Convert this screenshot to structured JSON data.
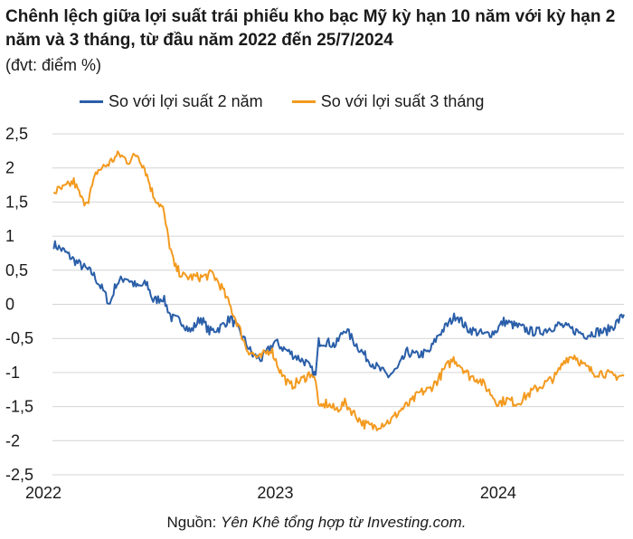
{
  "title": "Chênh lệch giữa lợi suất trái phiếu kho bạc Mỹ kỳ hạn 10 năm với kỳ hạn 2 năm và 3 tháng, từ đầu năm 2022 đến 25/7/2024",
  "subtitle": "(đvt: điểm %)",
  "source_label": "Nguồn: ",
  "source_text": "Yên Khê tổng hợp từ Investing.com.",
  "colors": {
    "series_2y": "#2a5ea8",
    "series_3m": "#f39a1f",
    "grid": "#d4d4d4"
  },
  "chart_data": {
    "type": "line",
    "x_range": [
      "2022-01-01",
      "2024-07-25"
    ],
    "x_ticks": [
      {
        "label": "2022",
        "date": "2022-01-01"
      },
      {
        "label": "2023",
        "date": "2023-01-01"
      },
      {
        "label": "2024",
        "date": "2024-01-01"
      }
    ],
    "ylim": [
      -2.5,
      2.5
    ],
    "y_ticks": [
      {
        "label": "2,5",
        "value": 2.5
      },
      {
        "label": "2",
        "value": 2
      },
      {
        "label": "1,5",
        "value": 1.5
      },
      {
        "label": "1",
        "value": 1
      },
      {
        "label": "0,5",
        "value": 0.5
      },
      {
        "label": "0",
        "value": 0
      },
      {
        "label": "-0,5",
        "value": -0.5
      },
      {
        "label": "-1",
        "value": -1
      },
      {
        "label": "-1,5",
        "value": -1.5
      },
      {
        "label": "-2",
        "value": -2
      },
      {
        "label": "-2,5",
        "value": -2.5
      }
    ],
    "grid": "horizontal",
    "legend_position": "top",
    "series": [
      {
        "name": "So với lợi suất 2 năm",
        "color": "#2a5ea8",
        "points": [
          [
            "2022-01-03",
            0.88
          ],
          [
            "2022-01-20",
            0.78
          ],
          [
            "2022-02-05",
            0.65
          ],
          [
            "2022-02-20",
            0.55
          ],
          [
            "2022-03-08",
            0.45
          ],
          [
            "2022-03-25",
            0.2
          ],
          [
            "2022-04-05",
            0.0
          ],
          [
            "2022-04-15",
            0.3
          ],
          [
            "2022-05-01",
            0.4
          ],
          [
            "2022-05-20",
            0.25
          ],
          [
            "2022-06-05",
            0.3
          ],
          [
            "2022-06-15",
            0.05
          ],
          [
            "2022-07-01",
            0.1
          ],
          [
            "2022-07-15",
            -0.2
          ],
          [
            "2022-08-01",
            -0.25
          ],
          [
            "2022-08-15",
            -0.4
          ],
          [
            "2022-09-01",
            -0.2
          ],
          [
            "2022-09-15",
            -0.4
          ],
          [
            "2022-10-01",
            -0.35
          ],
          [
            "2022-10-20",
            -0.2
          ],
          [
            "2022-11-10",
            -0.5
          ],
          [
            "2022-11-25",
            -0.75
          ],
          [
            "2022-12-10",
            -0.8
          ],
          [
            "2022-12-31",
            -0.55
          ],
          [
            "2023-01-15",
            -0.65
          ],
          [
            "2023-02-01",
            -0.75
          ],
          [
            "2023-02-20",
            -0.85
          ],
          [
            "2023-03-08",
            -1.05
          ],
          [
            "2023-03-13",
            -0.55
          ],
          [
            "2023-03-25",
            -0.55
          ],
          [
            "2023-04-10",
            -0.6
          ],
          [
            "2023-04-25",
            -0.35
          ],
          [
            "2023-05-10",
            -0.55
          ],
          [
            "2023-06-01",
            -0.8
          ],
          [
            "2023-06-20",
            -0.95
          ],
          [
            "2023-07-05",
            -1.05
          ],
          [
            "2023-07-20",
            -0.95
          ],
          [
            "2023-08-05",
            -0.7
          ],
          [
            "2023-08-20",
            -0.75
          ],
          [
            "2023-09-10",
            -0.7
          ],
          [
            "2023-09-25",
            -0.45
          ],
          [
            "2023-10-10",
            -0.3
          ],
          [
            "2023-10-25",
            -0.15
          ],
          [
            "2023-11-10",
            -0.35
          ],
          [
            "2023-11-25",
            -0.4
          ],
          [
            "2023-12-10",
            -0.45
          ],
          [
            "2023-12-27",
            -0.4
          ],
          [
            "2024-01-10",
            -0.25
          ],
          [
            "2024-01-25",
            -0.3
          ],
          [
            "2024-02-10",
            -0.35
          ],
          [
            "2024-02-25",
            -0.4
          ],
          [
            "2024-03-10",
            -0.4
          ],
          [
            "2024-03-25",
            -0.35
          ],
          [
            "2024-04-10",
            -0.3
          ],
          [
            "2024-04-25",
            -0.35
          ],
          [
            "2024-05-10",
            -0.4
          ],
          [
            "2024-05-25",
            -0.45
          ],
          [
            "2024-06-10",
            -0.4
          ],
          [
            "2024-06-25",
            -0.4
          ],
          [
            "2024-07-10",
            -0.3
          ],
          [
            "2024-07-25",
            -0.15
          ]
        ]
      },
      {
        "name": "So với lợi suất 3 tháng",
        "color": "#f39a1f",
        "points": [
          [
            "2022-01-03",
            1.65
          ],
          [
            "2022-01-20",
            1.7
          ],
          [
            "2022-02-05",
            1.8
          ],
          [
            "2022-02-20",
            1.5
          ],
          [
            "2022-03-01",
            1.55
          ],
          [
            "2022-03-15",
            1.95
          ],
          [
            "2022-04-01",
            2.05
          ],
          [
            "2022-04-20",
            2.2
          ],
          [
            "2022-05-05",
            2.1
          ],
          [
            "2022-05-20",
            2.2
          ],
          [
            "2022-06-01",
            2.0
          ],
          [
            "2022-06-15",
            1.6
          ],
          [
            "2022-07-01",
            1.4
          ],
          [
            "2022-07-10",
            0.95
          ],
          [
            "2022-07-20",
            0.55
          ],
          [
            "2022-08-05",
            0.4
          ],
          [
            "2022-08-20",
            0.4
          ],
          [
            "2022-09-05",
            0.4
          ],
          [
            "2022-09-20",
            0.45
          ],
          [
            "2022-10-05",
            0.25
          ],
          [
            "2022-10-20",
            -0.05
          ],
          [
            "2022-11-01",
            -0.3
          ],
          [
            "2022-11-15",
            -0.65
          ],
          [
            "2022-12-05",
            -0.8
          ],
          [
            "2022-12-25",
            -0.65
          ],
          [
            "2023-01-10",
            -1.0
          ],
          [
            "2023-01-25",
            -1.2
          ],
          [
            "2023-02-15",
            -1.1
          ],
          [
            "2023-03-01",
            -1.0
          ],
          [
            "2023-03-08",
            -1.15
          ],
          [
            "2023-03-15",
            -1.55
          ],
          [
            "2023-03-25",
            -1.45
          ],
          [
            "2023-04-10",
            -1.55
          ],
          [
            "2023-04-25",
            -1.45
          ],
          [
            "2023-05-10",
            -1.6
          ],
          [
            "2023-05-25",
            -1.75
          ],
          [
            "2023-06-10",
            -1.8
          ],
          [
            "2023-06-25",
            -1.75
          ],
          [
            "2023-07-10",
            -1.7
          ],
          [
            "2023-07-25",
            -1.55
          ],
          [
            "2023-08-10",
            -1.45
          ],
          [
            "2023-08-25",
            -1.3
          ],
          [
            "2023-09-10",
            -1.25
          ],
          [
            "2023-09-25",
            -1.1
          ],
          [
            "2023-10-05",
            -0.95
          ],
          [
            "2023-10-20",
            -0.8
          ],
          [
            "2023-11-01",
            -0.9
          ],
          [
            "2023-11-15",
            -1.05
          ],
          [
            "2023-12-01",
            -1.1
          ],
          [
            "2023-12-15",
            -1.25
          ],
          [
            "2024-01-01",
            -1.45
          ],
          [
            "2024-01-15",
            -1.4
          ],
          [
            "2024-02-01",
            -1.45
          ],
          [
            "2024-02-15",
            -1.35
          ],
          [
            "2024-03-01",
            -1.25
          ],
          [
            "2024-03-20",
            -1.15
          ],
          [
            "2024-04-05",
            -1.05
          ],
          [
            "2024-04-20",
            -0.8
          ],
          [
            "2024-05-05",
            -0.75
          ],
          [
            "2024-05-20",
            -0.9
          ],
          [
            "2024-06-05",
            -1.0
          ],
          [
            "2024-06-20",
            -1.0
          ],
          [
            "2024-07-05",
            -1.05
          ],
          [
            "2024-07-25",
            -1.05
          ]
        ]
      }
    ]
  }
}
